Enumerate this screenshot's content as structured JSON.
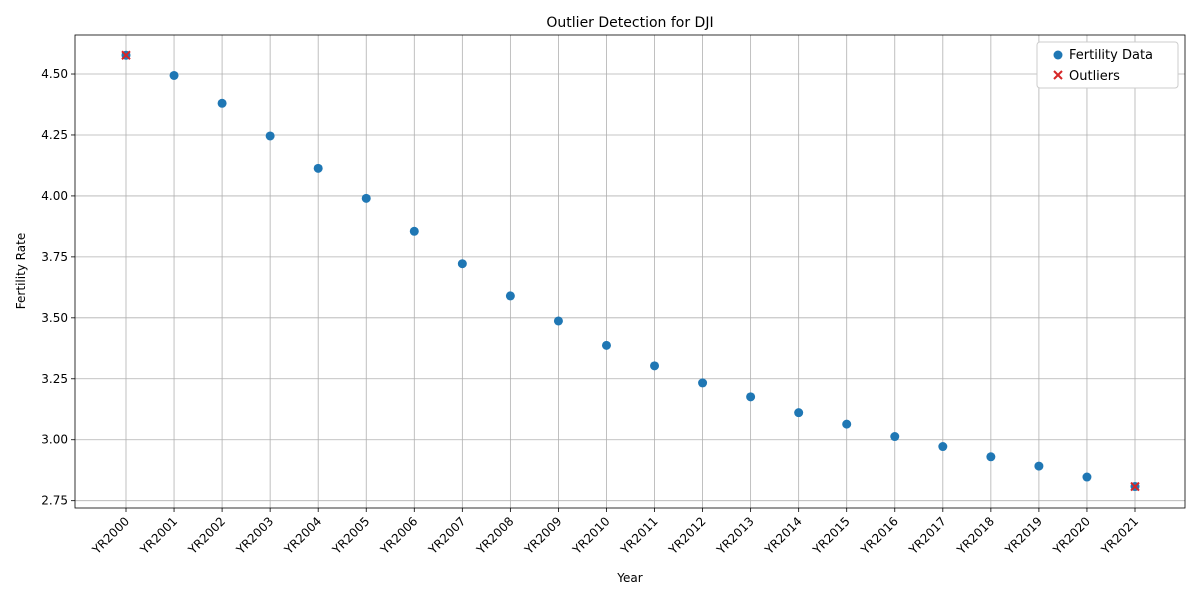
{
  "chart_data": {
    "type": "scatter",
    "title": "Outlier Detection for DJI",
    "xlabel": "Year",
    "ylabel": "Fertility Rate",
    "categories": [
      "YR2000",
      "YR2001",
      "YR2002",
      "YR2003",
      "YR2004",
      "YR2005",
      "YR2006",
      "YR2007",
      "YR2008",
      "YR2009",
      "YR2010",
      "YR2011",
      "YR2012",
      "YR2013",
      "YR2014",
      "YR2015",
      "YR2016",
      "YR2017",
      "YR2018",
      "YR2019",
      "YR2020",
      "YR2021"
    ],
    "ylim": [
      2.72,
      4.66
    ],
    "yticks": [
      "2.75",
      "3.00",
      "3.25",
      "3.50",
      "3.75",
      "4.00",
      "4.25",
      "4.50"
    ],
    "grid": true,
    "legend_position": "top-right",
    "series": [
      {
        "name": "Fertility Data",
        "marker": "circle",
        "color": "#1f77b4",
        "values": [
          4.577,
          4.494,
          4.38,
          4.246,
          4.113,
          3.99,
          3.855,
          3.722,
          3.59,
          3.487,
          3.387,
          3.303,
          3.233,
          3.176,
          3.111,
          3.064,
          3.013,
          2.972,
          2.93,
          2.892,
          2.847,
          2.808
        ]
      },
      {
        "name": "Outliers",
        "marker": "x",
        "color": "#d62728",
        "points": [
          {
            "x": "YR2000",
            "y": 4.577
          },
          {
            "x": "YR2021",
            "y": 2.808
          }
        ]
      }
    ]
  }
}
